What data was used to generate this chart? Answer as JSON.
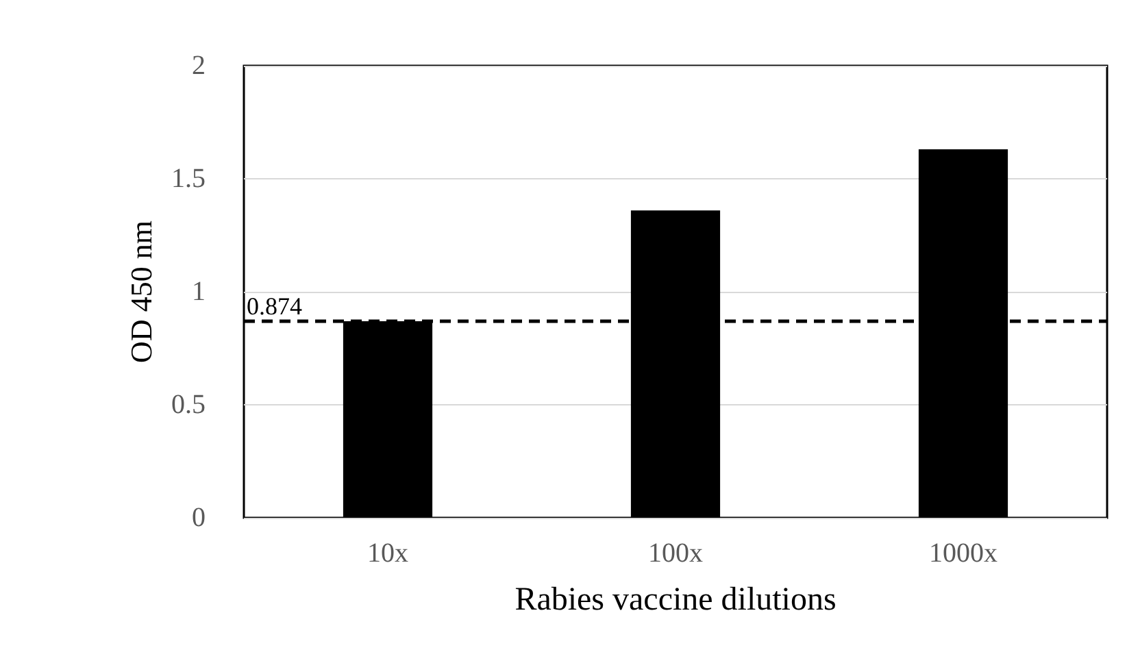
{
  "chart_data": {
    "type": "bar",
    "xlabel": "Rabies vaccine dilutions",
    "ylabel": "OD 450 nm",
    "categories": [
      "10x",
      "100x",
      "1000x"
    ],
    "values": [
      0.87,
      1.36,
      1.63
    ],
    "color": "#000000",
    "ylim": [
      0,
      2
    ],
    "yticks": [
      0,
      0.5,
      1,
      1.5,
      2
    ],
    "grid": "y",
    "ref_lines": [
      {
        "axis": "y",
        "value": 0.874,
        "label": "0.874",
        "color": "#000000",
        "line_style": "dashed"
      }
    ]
  }
}
